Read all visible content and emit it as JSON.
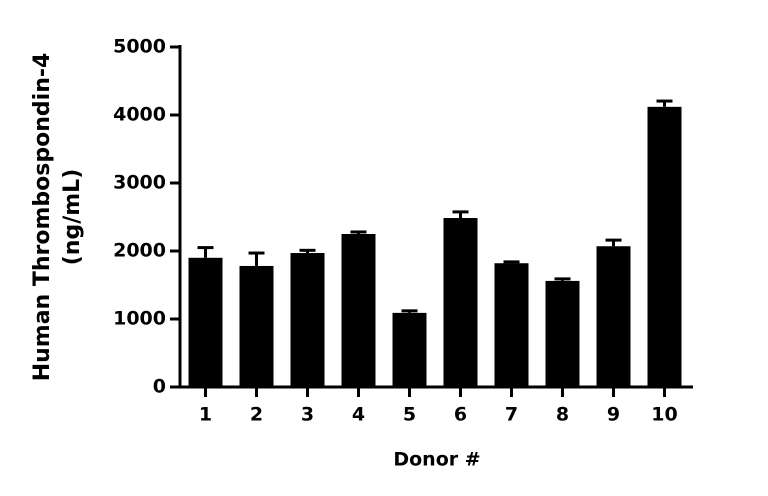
{
  "chart_data": {
    "type": "bar",
    "ylabel": [
      "Human Thrombospondin-4",
      "(ng/mL)"
    ],
    "xlabel": "Donor #",
    "categories": [
      "1",
      "2",
      "3",
      "4",
      "5",
      "6",
      "7",
      "8",
      "9",
      "10"
    ],
    "values": [
      1900,
      1780,
      1970,
      2250,
      1090,
      2485,
      1820,
      1560,
      2070,
      4120
    ],
    "errors": [
      150,
      190,
      40,
      30,
      30,
      90,
      20,
      30,
      90,
      85
    ],
    "color": "#000000",
    "ylim": [
      0,
      5000
    ],
    "yticks": [
      0,
      1000,
      2000,
      3000,
      4000,
      5000
    ],
    "grid": false
  }
}
